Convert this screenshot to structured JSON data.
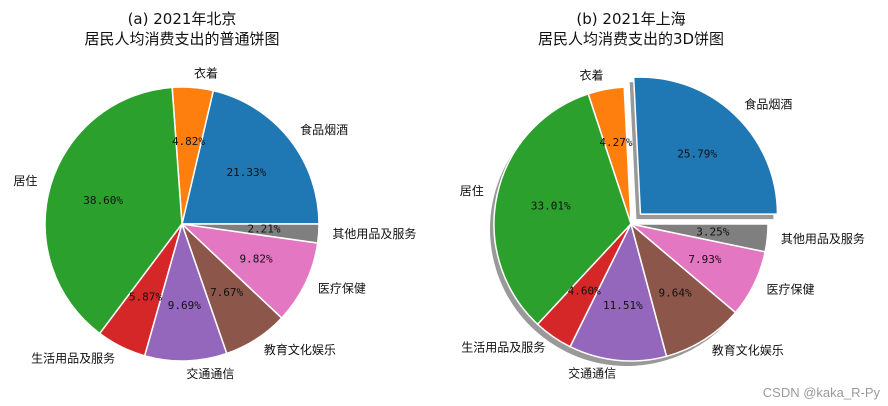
{
  "colors": [
    "#1f77b4",
    "#ff7f0e",
    "#2ca02c",
    "#d62728",
    "#9467bd",
    "#8c564b",
    "#e377c2",
    "#7f7f7f"
  ],
  "chart_data": [
    {
      "type": "pie",
      "title_line1": "(a) 2021年北京",
      "title_line2": "居民人均消费支出的普通饼图",
      "categories": [
        "食品烟酒",
        "衣着",
        "居住",
        "生活用品及服务",
        "交通通信",
        "教育文化娱乐",
        "医疗保健",
        "其他用品及服务"
      ],
      "values": [
        21.33,
        4.82,
        38.6,
        5.87,
        9.69,
        7.67,
        9.82,
        2.21
      ],
      "value_labels": [
        "21.33%",
        "4.82%",
        "38.60%",
        "5.87%",
        "9.69%",
        "7.67%",
        "9.82%",
        "2.21%"
      ],
      "exploded": [
        false,
        false,
        false,
        false,
        false,
        false,
        false,
        false
      ],
      "shadow": false
    },
    {
      "type": "pie",
      "title_line1": "(b) 2021年上海",
      "title_line2": "居民人均消费支出的3D饼图",
      "categories": [
        "食品烟酒",
        "衣着",
        "居住",
        "生活用品及服务",
        "交通通信",
        "教育文化娱乐",
        "医疗保健",
        "其他用品及服务"
      ],
      "values": [
        25.79,
        4.27,
        33.01,
        4.6,
        11.51,
        9.64,
        7.93,
        3.25
      ],
      "value_labels": [
        "25.79%",
        "4.27%",
        "33.01%",
        "4.60%",
        "11.51%",
        "9.64%",
        "7.93%",
        "3.25%"
      ],
      "exploded": [
        true,
        false,
        false,
        false,
        false,
        false,
        false,
        false
      ],
      "shadow": true
    }
  ],
  "watermark": "CSDN @kaka_R-Py"
}
